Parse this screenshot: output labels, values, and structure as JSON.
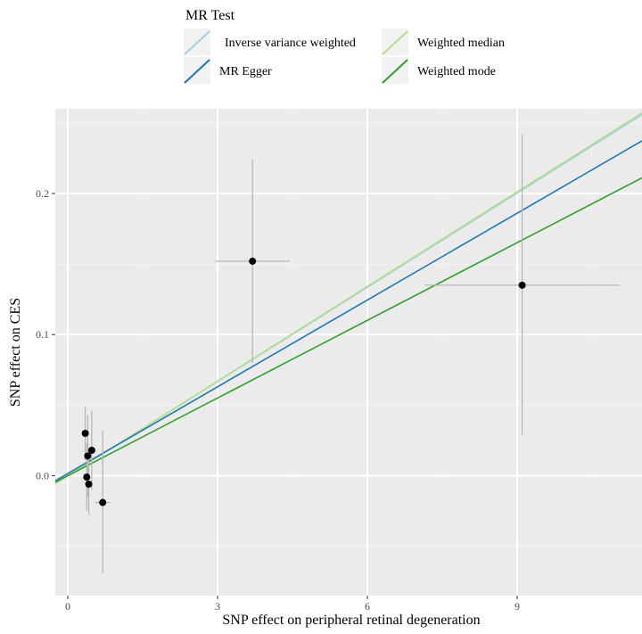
{
  "chart_data": {
    "type": "scatter",
    "xlabel": "SNP effect on  peripheral retinal degeneration",
    "ylabel": "SNP effect on CES",
    "xlim": [
      -0.25,
      11.5
    ],
    "ylim": [
      -0.085,
      0.26
    ],
    "x_ticks": [
      0,
      3,
      6,
      9
    ],
    "x_tick_labels": [
      "0",
      "3",
      "6",
      "9"
    ],
    "y_ticks": [
      0.0,
      0.1,
      0.2
    ],
    "y_tick_labels": [
      "0.0",
      "0.1",
      "0.2"
    ],
    "grid": true,
    "legend": {
      "title": "MR Test",
      "position": "top",
      "entries": [
        {
          "name": "Inverse variance weighted",
          "color": "#a6cee3"
        },
        {
          "name": "Weighted median",
          "color": "#b2df8a"
        },
        {
          "name": "MR Egger",
          "color": "#1f78b4"
        },
        {
          "name": "Weighted mode",
          "color": "#33a02c"
        }
      ]
    },
    "points": [
      {
        "x": 3.7,
        "y": 0.152,
        "xlo": 2.95,
        "xhi": 4.45,
        "ylo": 0.08,
        "yhi": 0.224
      },
      {
        "x": 9.1,
        "y": 0.135,
        "xlo": 7.15,
        "xhi": 11.05,
        "ylo": 0.029,
        "yhi": 0.242
      },
      {
        "x": 0.35,
        "y": 0.03,
        "xlo": 0.33,
        "xhi": 0.37,
        "ylo": 0.011,
        "yhi": 0.049
      },
      {
        "x": 0.4,
        "y": 0.014,
        "xlo": 0.38,
        "xhi": 0.42,
        "ylo": -0.015,
        "yhi": 0.043
      },
      {
        "x": 0.48,
        "y": 0.018,
        "xlo": 0.45,
        "xhi": 0.51,
        "ylo": -0.01,
        "yhi": 0.046
      },
      {
        "x": 0.38,
        "y": -0.001,
        "xlo": 0.35,
        "xhi": 0.41,
        "ylo": -0.025,
        "yhi": 0.023
      },
      {
        "x": 0.42,
        "y": -0.006,
        "xlo": 0.39,
        "xhi": 0.45,
        "ylo": -0.028,
        "yhi": 0.016
      },
      {
        "x": 0.7,
        "y": -0.019,
        "xlo": 0.55,
        "xhi": 0.85,
        "ylo": -0.069,
        "yhi": 0.032
      }
    ],
    "lines": [
      {
        "name": "Inverse variance weighted",
        "color": "#a6cee3",
        "intercept": 0.0,
        "slope": 0.02225
      },
      {
        "name": "Weighted median",
        "color": "#b2df8a",
        "intercept": 0.0,
        "slope": 0.02235
      },
      {
        "name": "MR Egger",
        "color": "#1f78b4",
        "intercept": 0.0015,
        "slope": 0.0205
      },
      {
        "name": "Weighted mode",
        "color": "#33a02c",
        "intercept": 0.0,
        "slope": 0.01835
      }
    ]
  }
}
